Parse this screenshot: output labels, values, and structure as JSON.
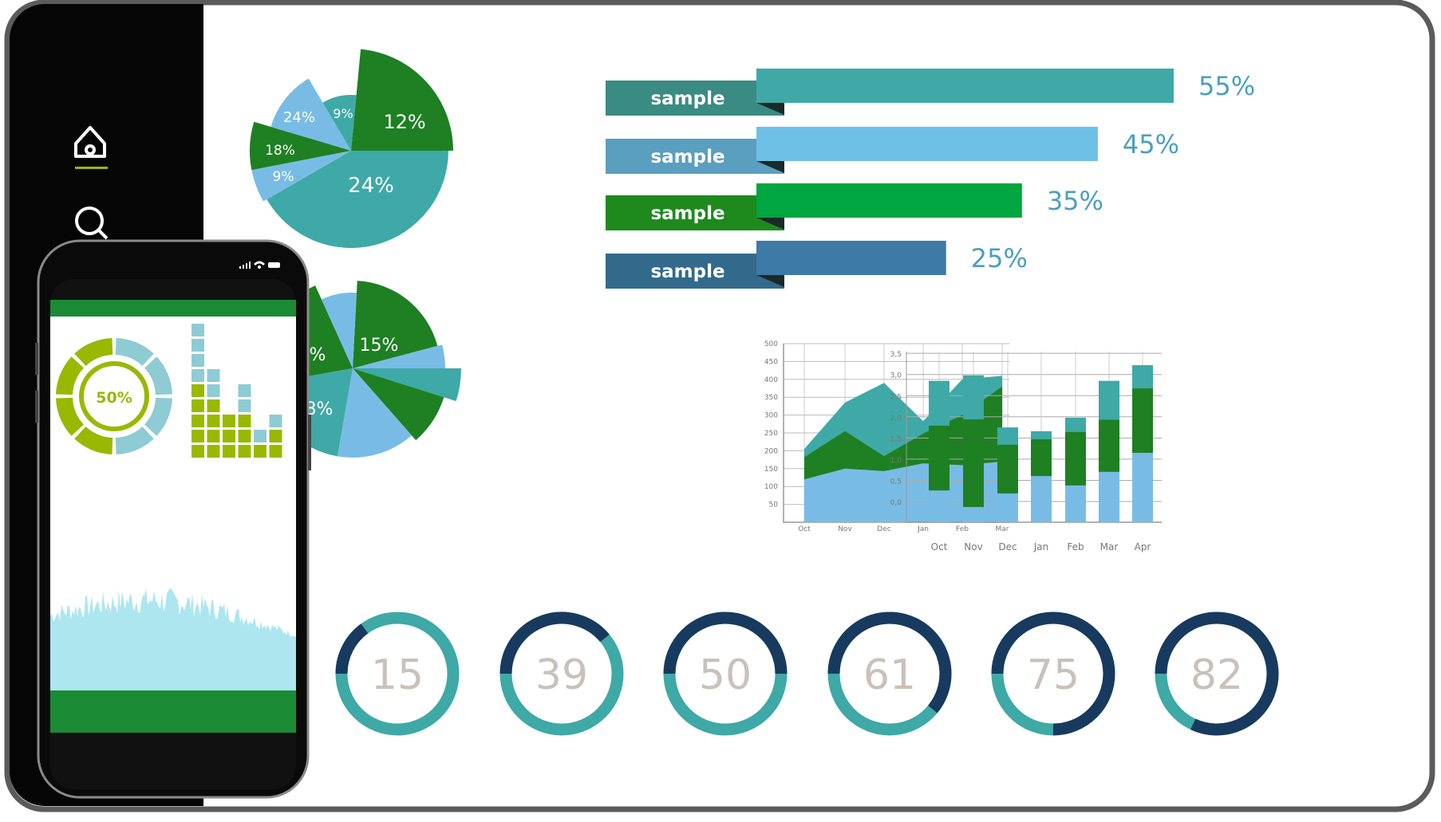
{
  "sidebar": {
    "items": [
      {
        "icon": "home-icon",
        "active": true
      },
      {
        "icon": "search-icon",
        "active": false
      }
    ],
    "active_color": "#9ab800"
  },
  "colors": {
    "green": "#1e8022",
    "teal": "#3ea9a6",
    "light_blue": "#78bce6",
    "navy": "#173a5e",
    "olive": "#99b800",
    "pale_teal": "#8ecbd4",
    "wave": "#aee6f0",
    "phone_green": "#1a8a35"
  },
  "phone": {
    "donut_label": "50%",
    "donut_value": 50,
    "status_icons": [
      "signal-icon",
      "wifi-icon",
      "battery-icon"
    ]
  },
  "chart_data": [
    {
      "type": "pie",
      "slices": [
        {
          "label": "12%",
          "color": "#1e8022"
        },
        {
          "label": "24%",
          "color": "#3ea9a6"
        },
        {
          "label": "9%",
          "color": "#78bce6"
        },
        {
          "label": "18%",
          "color": "#1e8022"
        },
        {
          "label": "24%",
          "color": "#78bce6"
        },
        {
          "label": "9%",
          "color": "#3ea9a6"
        }
      ]
    },
    {
      "type": "pie",
      "slices": [
        {
          "label": "15%",
          "color": "#1e8022"
        },
        {
          "label": "",
          "color": "#78bce6"
        },
        {
          "label": "",
          "color": "#3ea9a6"
        },
        {
          "label": "",
          "color": "#1e8022"
        },
        {
          "label": "12%",
          "color": "#78bce6"
        },
        {
          "label": "8%",
          "color": "#3ea9a6"
        },
        {
          "label": "%",
          "color": "#1e8022"
        },
        {
          "label": "",
          "color": "#78bce6"
        }
      ]
    },
    {
      "type": "bar",
      "orientation": "horizontal",
      "categories": [
        "sample",
        "sample",
        "sample",
        "sample"
      ],
      "values": [
        55,
        45,
        35,
        25
      ],
      "value_labels": [
        "55%",
        "45%",
        "35%",
        "25%"
      ],
      "bar_colors": [
        "#3fa9a8",
        "#6fc0e6",
        "#00a63f",
        "#3e7aa6"
      ],
      "label_colors": [
        "#3a8b84",
        "#5a9fbf",
        "#1e8a1e",
        "#336a8c"
      ]
    },
    {
      "type": "area",
      "stacked": true,
      "categories": [
        "Oct",
        "Nov",
        "Dec",
        "Jan",
        "Feb",
        "Mar"
      ],
      "yticks": [
        "500",
        "450",
        "400",
        "350",
        "300",
        "250",
        "200",
        "150",
        "100",
        "50"
      ],
      "ylim": [
        0,
        500
      ],
      "grid": true,
      "series_tops": [
        {
          "color": "#78bce6",
          "values": [
            120,
            150,
            143,
            165,
            160,
            170
          ]
        },
        {
          "color": "#1e8022",
          "values": [
            182,
            255,
            185,
            248,
            300,
            380
          ]
        },
        {
          "color": "#3ea9a6",
          "values": [
            205,
            335,
            390,
            283,
            400,
            410
          ]
        }
      ]
    },
    {
      "type": "bar",
      "stacked": true,
      "categories": [
        "Oct",
        "Nov",
        "Dec",
        "Jan",
        "Feb",
        "Mar",
        "Apr"
      ],
      "yticks": [
        "3,5",
        "3,0",
        "2,5",
        "2,0",
        "1,5",
        "1,0",
        "0,5",
        "0,0"
      ],
      "ylim": [
        -0.5,
        3.5
      ],
      "grid": true,
      "series_tops": [
        {
          "color": "#78bce6",
          "values": [
            0.26,
            -0.13,
            0.19,
            0.6,
            0.38,
            0.7,
            1.15
          ]
        },
        {
          "color": "#1e8022",
          "values": [
            1.79,
            1.94,
            1.34,
            1.47,
            1.64,
            1.93,
            2.67
          ]
        },
        {
          "color": "#3ea9a6",
          "values": [
            2.85,
            2.98,
            1.75,
            1.66,
            1.98,
            2.85,
            3.22
          ]
        }
      ]
    }
  ],
  "gauges": [
    {
      "label": "15",
      "value": 15
    },
    {
      "label": "39",
      "value": 39
    },
    {
      "label": "50",
      "value": 50
    },
    {
      "label": "61",
      "value": 61
    },
    {
      "label": "75",
      "value": 75
    },
    {
      "label": "82",
      "value": 82
    }
  ]
}
